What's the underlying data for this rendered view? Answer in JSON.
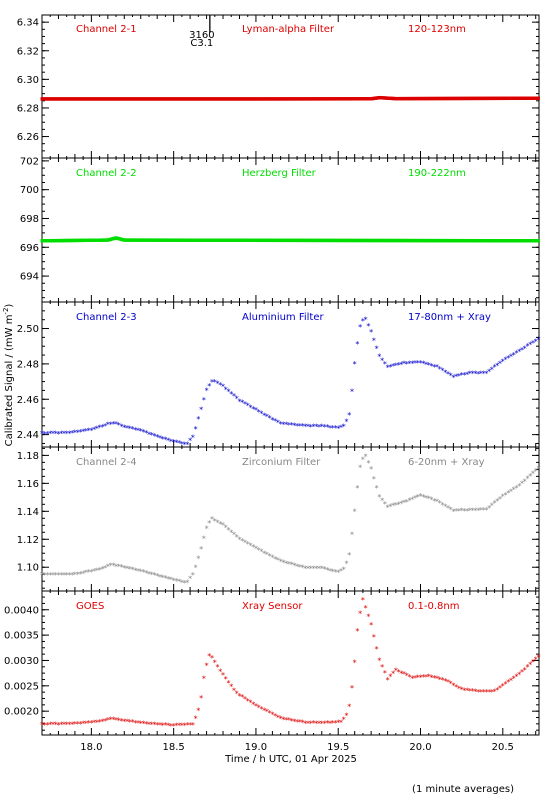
{
  "figure": {
    "ylabel": "Calibrated Signal / (mW m",
    "ylabel_sup": "-2",
    "ylabel_close": ")",
    "xlabel": "Time / h UTC, 01 Apr 2025",
    "footnote": "(1 minute averages)",
    "marker": {
      "x": 18.72,
      "label_top": "3160",
      "label_bottom": "C3.1"
    }
  },
  "chart_data": [
    {
      "type": "scatter",
      "label": "Channel 2-1",
      "filter": "Lyman-alpha Filter",
      "band": "120-123nm",
      "color": "#dd0000",
      "xlim": [
        17.7,
        20.72
      ],
      "ylim": [
        6.245,
        6.345
      ],
      "yticks": [
        6.26,
        6.28,
        6.3,
        6.32,
        6.34
      ],
      "tick_decimals": 2,
      "baseline": 6.2863,
      "control": [
        [
          17.7,
          6.2863
        ],
        [
          19.0,
          6.2863
        ],
        [
          19.7,
          6.2864
        ],
        [
          19.75,
          6.2872
        ],
        [
          19.85,
          6.2865
        ],
        [
          20.72,
          6.2868
        ]
      ]
    },
    {
      "type": "scatter",
      "label": "Channel 2-2",
      "filter": "Herzberg Filter",
      "band": "190-222nm",
      "color": "#00dd00",
      "xlim": [
        17.7,
        20.72
      ],
      "ylim": [
        692.2,
        702.2
      ],
      "yticks": [
        694,
        696,
        698,
        700,
        702
      ],
      "tick_decimals": 0,
      "baseline": 696.5,
      "control": [
        [
          17.7,
          696.45
        ],
        [
          18.1,
          696.5
        ],
        [
          18.15,
          696.65
        ],
        [
          18.2,
          696.5
        ],
        [
          20.72,
          696.45
        ]
      ]
    },
    {
      "type": "scatter",
      "label": "Channel 2-3",
      "filter": "Aluminium Filter",
      "band": "17-80nm + Xray",
      "color": "#0000cc",
      "xlim": [
        17.7,
        20.72
      ],
      "ylim": [
        2.433,
        2.515
      ],
      "yticks": [
        2.44,
        2.46,
        2.48,
        2.5
      ],
      "tick_decimals": 2,
      "control": [
        [
          17.7,
          2.4405
        ],
        [
          17.85,
          2.4405
        ],
        [
          18.0,
          2.4425
        ],
        [
          18.1,
          2.4455
        ],
        [
          18.15,
          2.4462
        ],
        [
          18.18,
          2.4445
        ],
        [
          18.3,
          2.442
        ],
        [
          18.45,
          2.437
        ],
        [
          18.58,
          2.434
        ],
        [
          18.62,
          2.439
        ],
        [
          18.66,
          2.452
        ],
        [
          18.7,
          2.465
        ],
        [
          18.74,
          2.4705
        ],
        [
          18.8,
          2.467
        ],
        [
          18.9,
          2.459
        ],
        [
          19.05,
          2.451
        ],
        [
          19.15,
          2.446
        ],
        [
          19.3,
          2.4445
        ],
        [
          19.4,
          2.4445
        ],
        [
          19.5,
          2.4435
        ],
        [
          19.54,
          2.445
        ],
        [
          19.57,
          2.452
        ],
        [
          19.6,
          2.48
        ],
        [
          19.63,
          2.5
        ],
        [
          19.66,
          2.5065
        ],
        [
          19.7,
          2.498
        ],
        [
          19.75,
          2.484
        ],
        [
          19.8,
          2.478
        ],
        [
          19.9,
          2.48
        ],
        [
          20.0,
          2.4805
        ],
        [
          20.1,
          2.478
        ],
        [
          20.2,
          2.4725
        ],
        [
          20.3,
          2.4745
        ],
        [
          20.4,
          2.4745
        ],
        [
          20.5,
          2.4815
        ],
        [
          20.6,
          2.487
        ],
        [
          20.72,
          2.494
        ]
      ]
    },
    {
      "type": "scatter",
      "label": "Channel 2-4",
      "filter": "Zirconium Filter",
      "band": "6-20nm + Xray",
      "color": "#888888",
      "xlim": [
        17.7,
        20.72
      ],
      "ylim": [
        1.083,
        1.186
      ],
      "yticks": [
        1.1,
        1.12,
        1.14,
        1.16,
        1.18
      ],
      "tick_decimals": 2,
      "control": [
        [
          17.7,
          1.0945
        ],
        [
          17.9,
          1.0945
        ],
        [
          18.05,
          1.098
        ],
        [
          18.12,
          1.1015
        ],
        [
          18.2,
          1.0995
        ],
        [
          18.3,
          1.097
        ],
        [
          18.45,
          1.092
        ],
        [
          18.58,
          1.0885
        ],
        [
          18.62,
          1.095
        ],
        [
          18.66,
          1.11
        ],
        [
          18.7,
          1.128
        ],
        [
          18.73,
          1.1345
        ],
        [
          18.8,
          1.13
        ],
        [
          18.9,
          1.12
        ],
        [
          19.05,
          1.11
        ],
        [
          19.15,
          1.104
        ],
        [
          19.3,
          1.099
        ],
        [
          19.4,
          1.099
        ],
        [
          19.5,
          1.096
        ],
        [
          19.54,
          1.099
        ],
        [
          19.57,
          1.11
        ],
        [
          19.6,
          1.14
        ],
        [
          19.63,
          1.17
        ],
        [
          19.66,
          1.181
        ],
        [
          19.7,
          1.17
        ],
        [
          19.75,
          1.15
        ],
        [
          19.8,
          1.143
        ],
        [
          19.9,
          1.146
        ],
        [
          20.0,
          1.151
        ],
        [
          20.1,
          1.147
        ],
        [
          20.2,
          1.14
        ],
        [
          20.3,
          1.1405
        ],
        [
          20.4,
          1.141
        ],
        [
          20.5,
          1.1505
        ],
        [
          20.6,
          1.158
        ],
        [
          20.72,
          1.171
        ]
      ]
    },
    {
      "type": "scatter",
      "label": "GOES",
      "filter": "Xray Sensor",
      "band": "0.1-0.8nm",
      "color": "#dd0000",
      "xlim": [
        17.7,
        20.72
      ],
      "ylim": [
        0.00153,
        0.00437
      ],
      "yticks": [
        0.002,
        0.0025,
        0.003,
        0.0035,
        0.004
      ],
      "tick_decimals": 4,
      "control": [
        [
          17.7,
          0.00173
        ],
        [
          17.9,
          0.00174
        ],
        [
          18.05,
          0.00178
        ],
        [
          18.12,
          0.00184
        ],
        [
          18.2,
          0.0018
        ],
        [
          18.35,
          0.00174
        ],
        [
          18.5,
          0.00171
        ],
        [
          18.62,
          0.00173
        ],
        [
          18.66,
          0.0021
        ],
        [
          18.69,
          0.0028
        ],
        [
          18.72,
          0.00312
        ],
        [
          18.78,
          0.0028
        ],
        [
          18.88,
          0.00235
        ],
        [
          19.0,
          0.0021
        ],
        [
          19.15,
          0.00185
        ],
        [
          19.3,
          0.00176
        ],
        [
          19.45,
          0.00176
        ],
        [
          19.52,
          0.00178
        ],
        [
          19.56,
          0.00195
        ],
        [
          19.59,
          0.0026
        ],
        [
          19.62,
          0.0037
        ],
        [
          19.65,
          0.0042
        ],
        [
          19.7,
          0.0037
        ],
        [
          19.75,
          0.003
        ],
        [
          19.8,
          0.00262
        ],
        [
          19.85,
          0.0028
        ],
        [
          19.95,
          0.00265
        ],
        [
          20.05,
          0.00268
        ],
        [
          20.15,
          0.0026
        ],
        [
          20.25,
          0.00242
        ],
        [
          20.35,
          0.00238
        ],
        [
          20.45,
          0.00238
        ],
        [
          20.5,
          0.0025
        ],
        [
          20.6,
          0.00272
        ],
        [
          20.72,
          0.00308
        ]
      ]
    }
  ],
  "xaxis": {
    "ticks": [
      18.0,
      18.5,
      19.0,
      19.5,
      20.0,
      20.5
    ],
    "tick_labels": [
      "18.0",
      "18.5",
      "19.0",
      "19.5",
      "20.0",
      "20.5"
    ]
  }
}
